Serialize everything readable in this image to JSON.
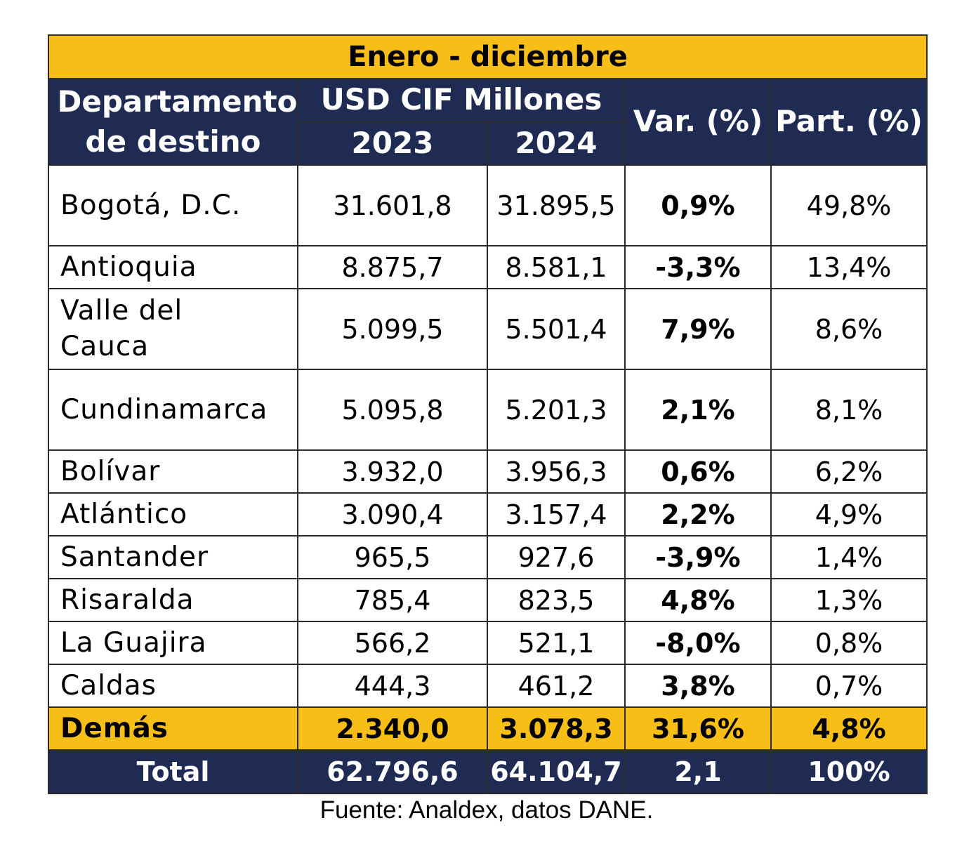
{
  "title": "Enero - diciembre",
  "headers": {
    "department": "Departamento de destino",
    "usd_group": "USD CIF Millones",
    "year_2023": "2023",
    "year_2024": "2024",
    "variation": "Var. (%)",
    "share": "Part. (%)"
  },
  "rows": [
    {
      "name": "Bogotá, D.C.",
      "v2023": "31.601,8",
      "v2024": "31.895,5",
      "var": "0,9%",
      "part": "49,8%"
    },
    {
      "name": "Antioquia",
      "v2023": "8.875,7",
      "v2024": "8.581,1",
      "var": "-3,3%",
      "part": "13,4%"
    },
    {
      "name": "Valle del Cauca",
      "v2023": "5.099,5",
      "v2024": "5.501,4",
      "var": "7,9%",
      "part": "8,6%"
    },
    {
      "name": "Cundinamarca",
      "v2023": "5.095,8",
      "v2024": "5.201,3",
      "var": "2,1%",
      "part": "8,1%"
    },
    {
      "name": "Bolívar",
      "v2023": "3.932,0",
      "v2024": "3.956,3",
      "var": "0,6%",
      "part": "6,2%"
    },
    {
      "name": "Atlántico",
      "v2023": "3.090,4",
      "v2024": "3.157,4",
      "var": "2,2%",
      "part": "4,9%"
    },
    {
      "name": "Santander",
      "v2023": "965,5",
      "v2024": "927,6",
      "var": "-3,9%",
      "part": "1,4%"
    },
    {
      "name": "Risaralda",
      "v2023": "785,4",
      "v2024": "823,5",
      "var": "4,8%",
      "part": "1,3%"
    },
    {
      "name": "La Guajira",
      "v2023": "566,2",
      "v2024": "521,1",
      "var": "-8,0%",
      "part": "0,8%"
    },
    {
      "name": "Caldas",
      "v2023": "444,3",
      "v2024": "461,2",
      "var": "3,8%",
      "part": "0,7%"
    }
  ],
  "others": {
    "name": "Demás",
    "v2023": "2.340,0",
    "v2024": "3.078,3",
    "var": "31,6%",
    "part": "4,8%"
  },
  "total": {
    "name": "Total",
    "v2023": "62.796,6",
    "v2024": "64.104,7",
    "var": "2,1",
    "part": "100%"
  },
  "source": "Fuente: Analdex, datos DANE.",
  "colors": {
    "accent_yellow": "#f7be17",
    "header_navy": "#1f2b52"
  }
}
